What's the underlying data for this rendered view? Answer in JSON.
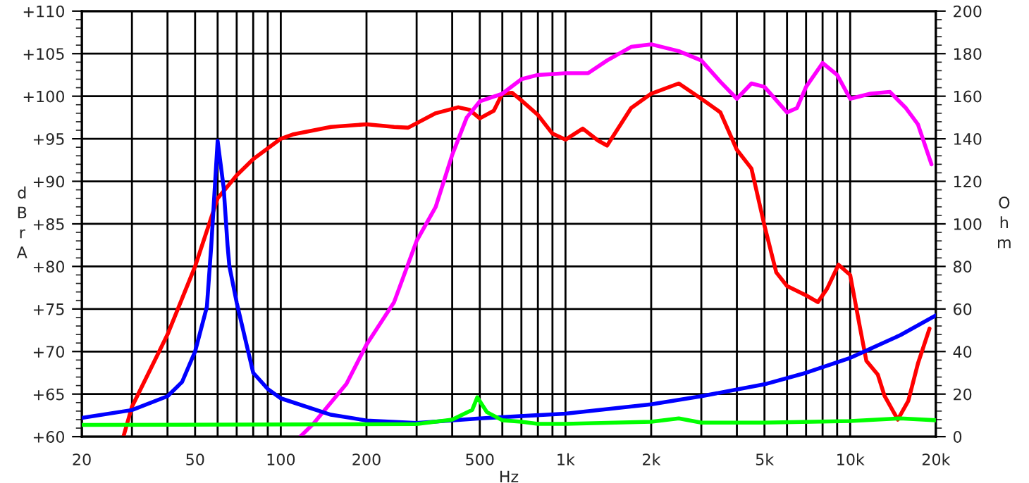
{
  "chart_data": {
    "type": "line",
    "xlabel": "Hz",
    "ylabel": "dBrA",
    "y2label": "Ohm",
    "log": "x",
    "grid": true,
    "legend": false,
    "line_style": "solid",
    "marker": "none",
    "xlim": [
      20,
      20000
    ],
    "xticks": [
      20,
      {
        "value": 30,
        "label": null
      },
      {
        "value": 40,
        "label": null
      },
      50,
      {
        "value": 60,
        "label": null
      },
      {
        "value": 70,
        "label": null
      },
      {
        "value": 80,
        "label": null
      },
      {
        "value": 90,
        "label": null
      },
      100,
      200,
      {
        "value": 300,
        "label": null
      },
      {
        "value": 400,
        "label": null
      },
      500,
      {
        "value": 600,
        "label": null
      },
      {
        "value": 700,
        "label": null
      },
      {
        "value": 800,
        "label": null
      },
      {
        "value": 900,
        "label": null
      },
      {
        "value": 1000,
        "label": "1k"
      },
      {
        "value": 2000,
        "label": "2k"
      },
      {
        "value": 3000,
        "label": null
      },
      {
        "value": 4000,
        "label": null
      },
      {
        "value": 5000,
        "label": "5k"
      },
      {
        "value": 6000,
        "label": null
      },
      {
        "value": 7000,
        "label": null
      },
      {
        "value": 8000,
        "label": null
      },
      {
        "value": 9000,
        "label": null
      },
      {
        "value": 10000,
        "label": "10k"
      },
      {
        "value": 20000,
        "label": "20k"
      }
    ],
    "ylim": [
      60,
      110
    ],
    "yticks": [
      {
        "value": 60,
        "label": "+60"
      },
      {
        "value": 65,
        "label": "+65"
      },
      {
        "value": 70,
        "label": "+70"
      },
      {
        "value": 75,
        "label": "+75"
      },
      {
        "value": 80,
        "label": "+80"
      },
      {
        "value": 85,
        "label": "+85"
      },
      {
        "value": 90,
        "label": "+90"
      },
      {
        "value": 95,
        "label": "+95"
      },
      {
        "value": 100,
        "label": "+100"
      },
      {
        "value": 105,
        "label": "+105"
      },
      {
        "value": 110,
        "label": "+110"
      }
    ],
    "y2lim": [
      0,
      200
    ],
    "y2ticks": [
      0,
      20,
      40,
      60,
      80,
      100,
      120,
      140,
      160,
      180,
      200
    ],
    "series": [
      {
        "color": "#ff0000",
        "x": [
          28,
          30,
          40,
          50,
          60,
          70,
          80,
          100,
          110,
          150,
          200,
          250,
          280,
          350,
          420,
          460,
          500,
          560,
          600,
          650,
          700,
          800,
          900,
          1000,
          1150,
          1300,
          1400,
          1700,
          2000,
          2500,
          3000,
          3500,
          4000,
          4500,
          5000,
          5500,
          6000,
          7000,
          7700,
          8300,
          9100,
          10000,
          10800,
          11400,
          12500,
          13200,
          14700,
          16000,
          17300,
          19000
        ],
        "values": [
          60,
          63.5,
          72,
          80,
          88,
          90.7,
          92.6,
          95,
          95.5,
          96.4,
          96.7,
          96.4,
          96.3,
          98,
          98.7,
          98.4,
          97.4,
          98.3,
          100.3,
          100.4,
          99.5,
          97.8,
          95.6,
          94.9,
          96.2,
          94.8,
          94.2,
          98.6,
          100.3,
          101.5,
          99.7,
          98.1,
          93.7,
          91.5,
          84.8,
          79.3,
          77.7,
          76.6,
          75.8,
          77.4,
          80.2,
          79,
          73,
          68.9,
          67.3,
          64.8,
          62,
          64.2,
          68.6,
          72.7
        ]
      },
      {
        "color": "#ff00ff",
        "x": [
          117,
          130,
          150,
          170,
          200,
          250,
          300,
          350,
          400,
          450,
          500,
          600,
          700,
          800,
          1000,
          1200,
          1400,
          1700,
          2000,
          2500,
          3000,
          3500,
          4000,
          4500,
          5000,
          6000,
          6500,
          7000,
          8000,
          9000,
          10000,
          11800,
          13800,
          15700,
          17300,
          19300
        ],
        "values": [
          60,
          61.5,
          64,
          66.2,
          70.8,
          75.8,
          83,
          87,
          93.1,
          97.5,
          99.4,
          100.3,
          102,
          102.5,
          102.7,
          102.7,
          104.2,
          105.8,
          106.1,
          105.3,
          104.2,
          101.7,
          99.7,
          101.5,
          101.1,
          98.1,
          98.6,
          101.1,
          103.9,
          102.5,
          99.7,
          100.3,
          100.5,
          98.6,
          96.7,
          92
        ]
      },
      {
        "color": "#0000ff",
        "axis": "y2",
        "x": [
          20,
          30,
          40,
          45,
          50,
          55,
          57,
          60,
          63,
          65,
          66,
          70,
          80,
          90,
          100,
          150,
          200,
          300,
          500,
          1000,
          2000,
          3000,
          5000,
          7000,
          10000,
          15000,
          20000
        ],
        "values": [
          8.8,
          12.5,
          19,
          25.7,
          40,
          61,
          90,
          139,
          117,
          90,
          80,
          63,
          30,
          22.4,
          18,
          10.3,
          7.6,
          6.4,
          8.6,
          10.8,
          15.2,
          19,
          24.6,
          30,
          37,
          47.7,
          57
        ]
      },
      {
        "color": "#00ff00",
        "axis": "y2",
        "x": [
          20,
          300,
          400,
          470,
          490,
          530,
          600,
          700,
          800,
          1000,
          2000,
          2500,
          3000,
          5000,
          10000,
          15000,
          20000
        ],
        "values": [
          5.5,
          5.9,
          8,
          12.5,
          18.5,
          11.5,
          7.7,
          7,
          6,
          6,
          7,
          8.6,
          6.6,
          6.6,
          7.3,
          8.6,
          7.7
        ]
      }
    ]
  }
}
